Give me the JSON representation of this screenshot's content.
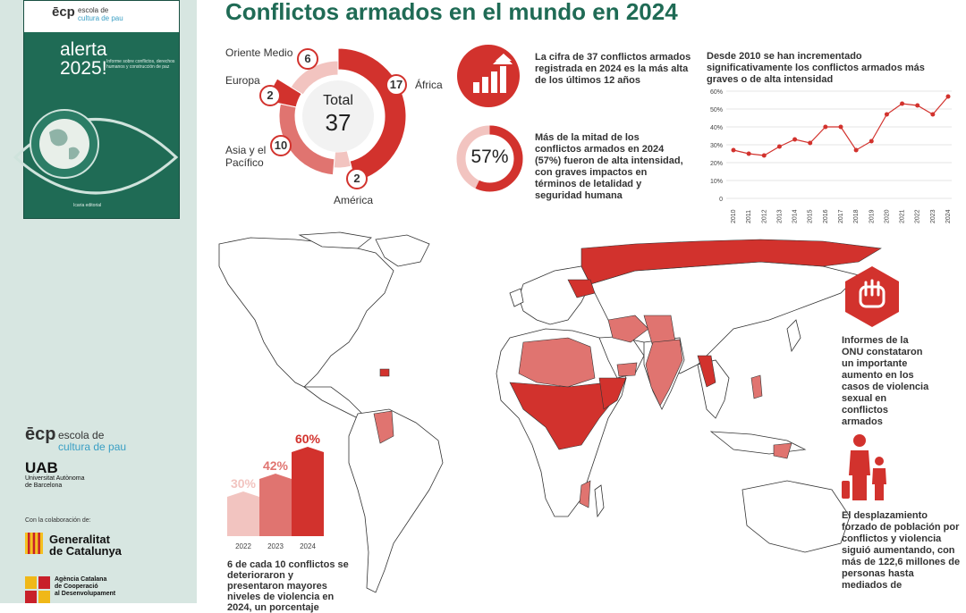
{
  "title": "Conflictos armados en el mundo en 2024",
  "sidebar": {
    "cover": {
      "logo": "ēcp",
      "logo_line1": "escola de",
      "logo_line2": "cultura de pau",
      "title_line1": "alerta",
      "title_line2": "2025!",
      "subtitle": "Informe sobre conflictos, derechos humanos y construcción de paz",
      "footer": "Icaria editorial"
    },
    "ecp_logo": "ēcp",
    "ecp_line1": "escola de",
    "ecp_line2": "cultura de pau",
    "uab": "UAB",
    "uab_line1": "Universitat Autònoma",
    "uab_line2": "de Barcelona",
    "collab": "Con la colaboración de:",
    "gen_line1": "Generalitat",
    "gen_line2": "de Catalunya",
    "acc_line1": "Agència Catalana",
    "acc_line2": "de Cooperació",
    "acc_line3": "al Desenvolupament"
  },
  "donut": {
    "total_label": "Total",
    "total_value": "37",
    "regions": [
      {
        "name": "África",
        "value": 17,
        "color": "#d2322d"
      },
      {
        "name": "América",
        "value": 2,
        "color": "#f2c4c0"
      },
      {
        "name": "Asia y el Pacífico",
        "value": 10,
        "color": "#e07470"
      },
      {
        "name": "Europa",
        "value": 2,
        "color": "#d2322d"
      },
      {
        "name": "Oriente Medio",
        "value": 6,
        "color": "#f2c4c0"
      }
    ],
    "labels": {
      "africa": "África",
      "america": "América",
      "asia_line1": "Asia y el",
      "asia_line2": "Pacífico",
      "europa": "Europa",
      "oriente": "Oriente Medio"
    },
    "values": {
      "africa": "17",
      "america": "2",
      "asia": "10",
      "europa": "2",
      "oriente": "6"
    }
  },
  "stats": {
    "conflicts_text": "La cifra de 37 conflictos armados registrada en 2024 es la más alta de los últimos 12 años",
    "pct_value": "57%",
    "pct_fraction": 0.57,
    "pct_text": "Más de la mitad de los conflictos armados en 2024 (57%) fueron de alta intensidad, con graves impactos en términos de letalidad y seguridad humana"
  },
  "chart_data": [
    {
      "type": "line",
      "title": "Desde 2010 se han incrementado significativamente los conflictos armados más graves o de alta intensidad",
      "x": [
        "2010",
        "2011",
        "2012",
        "2013",
        "2014",
        "2015",
        "2016",
        "2017",
        "2018",
        "2019",
        "2020",
        "2021",
        "2022",
        "2023",
        "2024"
      ],
      "values": [
        27,
        25,
        24,
        29,
        33,
        31,
        40,
        40,
        27,
        32,
        47,
        53,
        52,
        47,
        57
      ],
      "ylim": [
        0,
        60
      ],
      "yticks": [
        "0",
        "10%",
        "20%",
        "30%",
        "40%",
        "50%",
        "60%"
      ],
      "grid": true,
      "color": "#d2322d"
    },
    {
      "type": "bar",
      "categories": [
        "2022",
        "2023",
        "2024"
      ],
      "values": [
        30,
        42,
        60
      ],
      "labels": [
        "30%",
        "42%",
        "60%"
      ],
      "colors": [
        "#f2c4c0",
        "#e07470",
        "#d2322d"
      ]
    }
  ],
  "bar_text": "6 de cada 10 conflictos se deterioraron y presentaron mayores niveles de violencia en 2024, un porcentaje",
  "right": {
    "un_text": "Informes de la ONU constataron un importante aumento en los casos de violencia sexual en conflictos armados",
    "displacement_text": "El desplazamiento forzado de población por conflictos y violencia siguió aumentando, con más de 122,6 millones de personas hasta mediados de"
  },
  "colors": {
    "brand_green": "#1f6b55",
    "conflict_red": "#d2322d",
    "conflict_mid": "#e07470",
    "conflict_light": "#f2c4c0"
  }
}
